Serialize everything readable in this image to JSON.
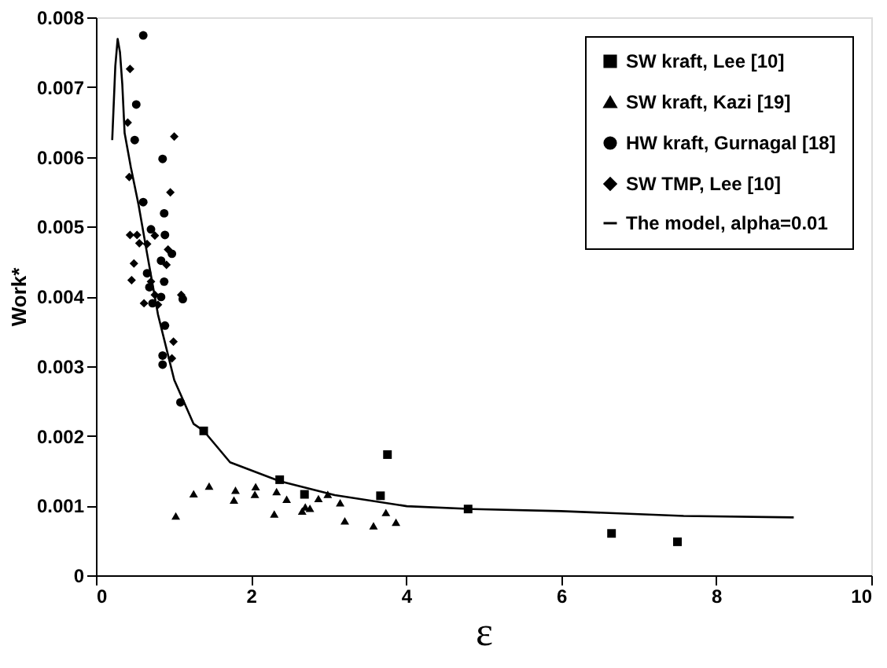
{
  "chart_data": {
    "type": "scatter",
    "xlabel": "ε",
    "ylabel": "Work*",
    "xlim": [
      0,
      10
    ],
    "xticks": [
      0,
      2,
      4,
      6,
      8,
      10
    ],
    "ylim": [
      0,
      0.008
    ],
    "yticks": [
      0,
      0.001,
      0.002,
      0.003,
      0.004,
      0.005,
      0.006,
      0.007,
      0.008
    ],
    "grid": false,
    "legend": "top right",
    "series": [
      {
        "name": "SW kraft, Lee [10]",
        "color": "#000000",
        "marker": "square",
        "x": [
          1.39,
          2.37,
          2.69,
          3.76,
          3.67,
          4.8,
          6.65,
          7.5
        ],
        "values": [
          0.00207,
          0.00137,
          0.00116,
          0.00173,
          0.00114,
          0.00095,
          0.0006,
          0.00048
        ]
      },
      {
        "name": "SW kraft, Kazi [19]",
        "color": "#000000",
        "marker": "triangle",
        "x": [
          1.03,
          1.26,
          1.46,
          1.8,
          1.78,
          2.06,
          2.05,
          2.3,
          2.33,
          2.46,
          2.66,
          2.7,
          2.76,
          2.87,
          2.99,
          3.15,
          3.21,
          3.58,
          3.74,
          3.87
        ],
        "values": [
          0.00085,
          0.00117,
          0.00128,
          0.00122,
          0.00108,
          0.00127,
          0.00116,
          0.00088,
          0.0012,
          0.00109,
          0.00092,
          0.00098,
          0.00096,
          0.0011,
          0.00116,
          0.00104,
          0.00078,
          0.00071,
          0.0009,
          0.00076
        ]
      },
      {
        "name": "HW kraft, Gurnagal [18]",
        "color": "#000000",
        "marker": "circle",
        "x": [
          0.61,
          0.52,
          0.5,
          0.86,
          0.61,
          0.88,
          0.71,
          0.89,
          0.98,
          0.84,
          0.66,
          0.88,
          0.69,
          0.84,
          1.12,
          0.73,
          0.89,
          0.86,
          0.86,
          1.09
        ],
        "values": [
          0.00774,
          0.00675,
          0.00624,
          0.00597,
          0.00535,
          0.00519,
          0.00496,
          0.00488,
          0.00461,
          0.00451,
          0.00433,
          0.00421,
          0.00413,
          0.00399,
          0.00396,
          0.0039,
          0.00358,
          0.00315,
          0.00302,
          0.00248
        ]
      },
      {
        "name": "SW TMP, Lee [10]",
        "color": "#000000",
        "marker": "diamond",
        "x": [
          0.44,
          0.41,
          1.01,
          0.43,
          0.96,
          0.53,
          0.44,
          0.56,
          0.76,
          0.66,
          0.93,
          0.49,
          0.91,
          0.71,
          0.46,
          0.76,
          1.1,
          0.62,
          0.8,
          1.0,
          0.98
        ],
        "values": [
          0.00726,
          0.00649,
          0.00629,
          0.00571,
          0.00549,
          0.00488,
          0.00488,
          0.00476,
          0.00487,
          0.00475,
          0.00467,
          0.00447,
          0.00445,
          0.00421,
          0.00423,
          0.00402,
          0.00402,
          0.0039,
          0.00388,
          0.00335,
          0.00311
        ]
      },
      {
        "name": "The model, alpha=0.01",
        "color": "#000000",
        "type": "line",
        "line_style": "solid",
        "x": [
          0.21,
          0.25,
          0.28,
          0.31,
          0.34,
          0.37,
          0.45,
          0.55,
          0.66,
          0.8,
          1.01,
          1.26,
          1.39,
          1.73,
          2.37,
          3.08,
          4.01,
          4.86,
          6,
          7.58,
          9
        ],
        "values": [
          0.00624,
          0.0073,
          0.00769,
          0.0075,
          0.00704,
          0.00634,
          0.00585,
          0.00531,
          0.00461,
          0.00374,
          0.0028,
          0.00217,
          0.00207,
          0.00162,
          0.00135,
          0.00115,
          0.00099,
          0.00095,
          0.00092,
          0.00085,
          0.00083
        ]
      }
    ]
  }
}
